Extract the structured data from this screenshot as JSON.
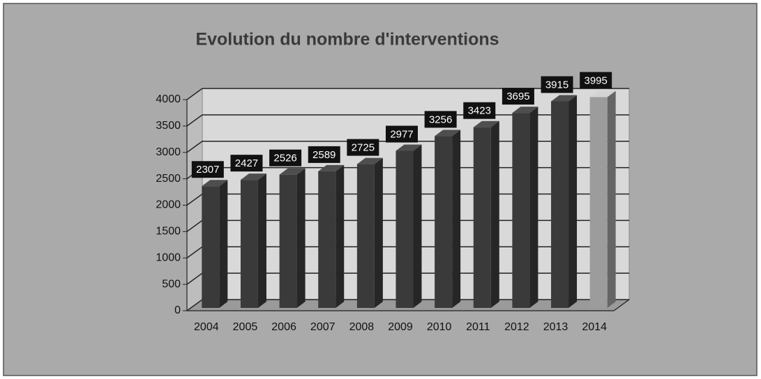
{
  "chart_data": {
    "type": "bar3d",
    "title": "Evolution du nombre d'interventions",
    "categories": [
      "2004",
      "2005",
      "2006",
      "2007",
      "2008",
      "2009",
      "2010",
      "2011",
      "2012",
      "2013",
      "2014"
    ],
    "series": [
      {
        "values": [
          2307,
          2427,
          2526,
          2589,
          2725,
          2977,
          3256,
          3423,
          3695,
          3915,
          3995
        ],
        "colors": [
          "#3a3a3a",
          "#3a3a3a",
          "#3a3a3a",
          "#3a3a3a",
          "#3a3a3a",
          "#3a3a3a",
          "#3a3a3a",
          "#3a3a3a",
          "#3a3a3a",
          "#3a3a3a",
          "#9c9c9c"
        ]
      }
    ],
    "ylim": [
      0,
      4000
    ],
    "yticks": [
      0,
      500,
      1000,
      1500,
      2000,
      2500,
      3000,
      3500,
      4000
    ],
    "grid": true
  }
}
